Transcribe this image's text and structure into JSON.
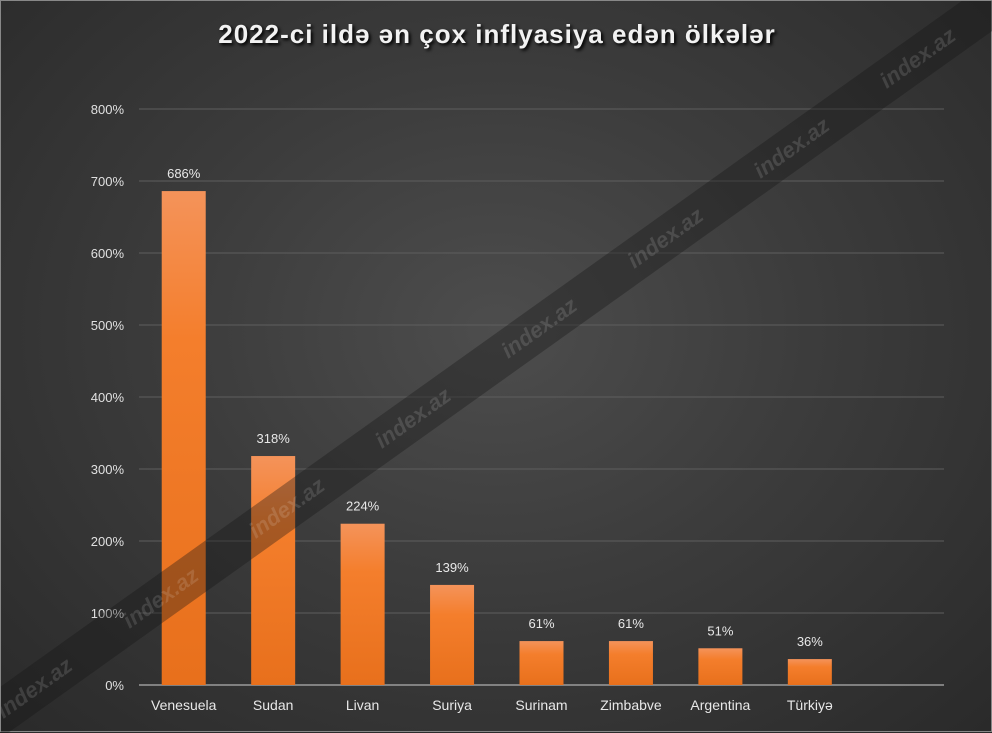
{
  "chart_data": {
    "type": "bar",
    "title": "2022-ci ildə ən çox inflyasiya edən ölkələr",
    "categories": [
      "Venesuela",
      "Sudan",
      "Livan",
      "Suriya",
      "Surinam",
      "Zimbabve",
      "Argentina",
      "Türkiyə"
    ],
    "values": [
      686,
      318,
      224,
      139,
      61,
      61,
      51,
      36
    ],
    "data_labels": [
      "686%",
      "318%",
      "224%",
      "139%",
      "61%",
      "61%",
      "51%",
      "36%"
    ],
    "ylim": [
      0,
      800
    ],
    "yticks": [
      0,
      100,
      200,
      300,
      400,
      500,
      600,
      700,
      800
    ],
    "ytick_labels": [
      "0%",
      "100%",
      "200%",
      "300%",
      "400%",
      "500%",
      "600%",
      "700%",
      "800%"
    ],
    "xlabel": "",
    "ylabel": "",
    "grid": true,
    "bar_color": "#f47b20"
  },
  "watermark": "index.az"
}
